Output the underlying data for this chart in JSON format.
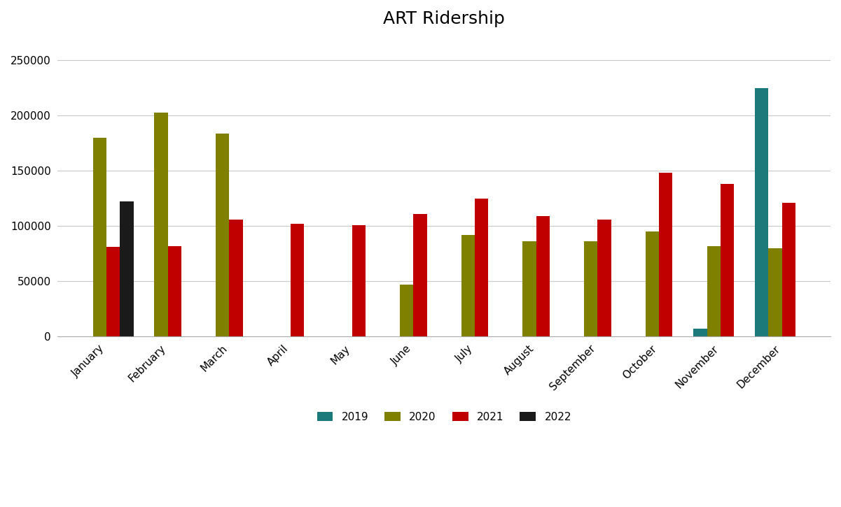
{
  "title": "ART Ridership",
  "months": [
    "January",
    "February",
    "March",
    "April",
    "May",
    "June",
    "July",
    "August",
    "September",
    "October",
    "November",
    "December"
  ],
  "series": {
    "2019": [
      null,
      null,
      null,
      null,
      null,
      null,
      null,
      null,
      null,
      null,
      7000,
      225000
    ],
    "2020": [
      180000,
      203000,
      184000,
      null,
      null,
      47000,
      92000,
      86000,
      86000,
      95000,
      82000,
      80000
    ],
    "2021": [
      81000,
      82000,
      106000,
      102000,
      101000,
      111000,
      125000,
      109000,
      106000,
      148000,
      138000,
      121000
    ],
    "2022": [
      122000,
      null,
      null,
      null,
      null,
      null,
      null,
      null,
      null,
      null,
      null,
      null
    ]
  },
  "colors": {
    "2019": "#1d7a7a",
    "2020": "#808000",
    "2021": "#c00000",
    "2022": "#1a1a1a"
  },
  "ylim": [
    0,
    270000
  ],
  "yticks": [
    0,
    50000,
    100000,
    150000,
    200000,
    250000
  ],
  "ytick_labels": [
    "0",
    "50000",
    "100000",
    "150000",
    "200000",
    "250000"
  ],
  "background_color": "#ffffff",
  "grid_color": "#c8c8c8"
}
